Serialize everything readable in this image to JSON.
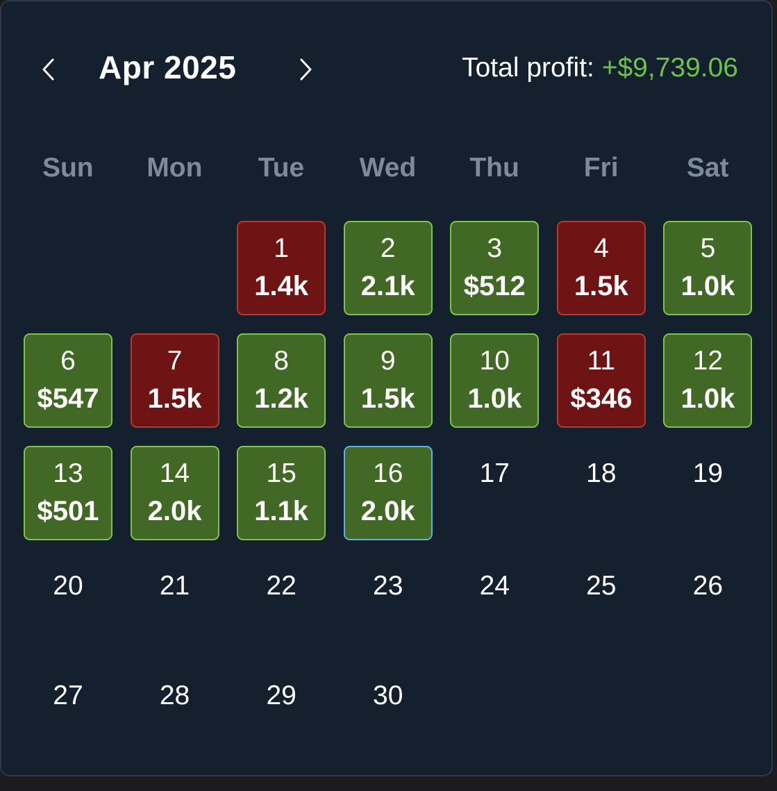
{
  "header": {
    "month_title": "Apr 2025",
    "total_label": "Total profit:",
    "total_value": "+$9,739.06"
  },
  "weekdays": [
    "Sun",
    "Mon",
    "Tue",
    "Wed",
    "Thu",
    "Fri",
    "Sat"
  ],
  "colors": {
    "profit_fill": "#416825",
    "profit_border": "#7cc54a",
    "loss_fill": "#6e1414",
    "loss_border": "#b33a33",
    "today_border": "#58b4e0",
    "total_value": "#6dc34a",
    "background": "#15202e"
  },
  "days": [
    {
      "day": "1",
      "amount": "1.4k",
      "status": "loss"
    },
    {
      "day": "2",
      "amount": "2.1k",
      "status": "profit"
    },
    {
      "day": "3",
      "amount": "$512",
      "status": "profit"
    },
    {
      "day": "4",
      "amount": "1.5k",
      "status": "loss"
    },
    {
      "day": "5",
      "amount": "1.0k",
      "status": "profit"
    },
    {
      "day": "6",
      "amount": "$547",
      "status": "profit"
    },
    {
      "day": "7",
      "amount": "1.5k",
      "status": "loss"
    },
    {
      "day": "8",
      "amount": "1.2k",
      "status": "profit"
    },
    {
      "day": "9",
      "amount": "1.5k",
      "status": "profit"
    },
    {
      "day": "10",
      "amount": "1.0k",
      "status": "profit"
    },
    {
      "day": "11",
      "amount": "$346",
      "status": "loss"
    },
    {
      "day": "12",
      "amount": "1.0k",
      "status": "profit"
    },
    {
      "day": "13",
      "amount": "$501",
      "status": "profit"
    },
    {
      "day": "14",
      "amount": "2.0k",
      "status": "profit"
    },
    {
      "day": "15",
      "amount": "1.1k",
      "status": "profit"
    },
    {
      "day": "16",
      "amount": "2.0k",
      "status": "today"
    },
    {
      "day": "17",
      "amount": "",
      "status": "none"
    },
    {
      "day": "18",
      "amount": "",
      "status": "none"
    },
    {
      "day": "19",
      "amount": "",
      "status": "none"
    },
    {
      "day": "20",
      "amount": "",
      "status": "none"
    },
    {
      "day": "21",
      "amount": "",
      "status": "none"
    },
    {
      "day": "22",
      "amount": "",
      "status": "none"
    },
    {
      "day": "23",
      "amount": "",
      "status": "none"
    },
    {
      "day": "24",
      "amount": "",
      "status": "none"
    },
    {
      "day": "25",
      "amount": "",
      "status": "none"
    },
    {
      "day": "26",
      "amount": "",
      "status": "none"
    },
    {
      "day": "27",
      "amount": "",
      "status": "none"
    },
    {
      "day": "28",
      "amount": "",
      "status": "none"
    },
    {
      "day": "29",
      "amount": "",
      "status": "none"
    },
    {
      "day": "30",
      "amount": "",
      "status": "none"
    }
  ]
}
